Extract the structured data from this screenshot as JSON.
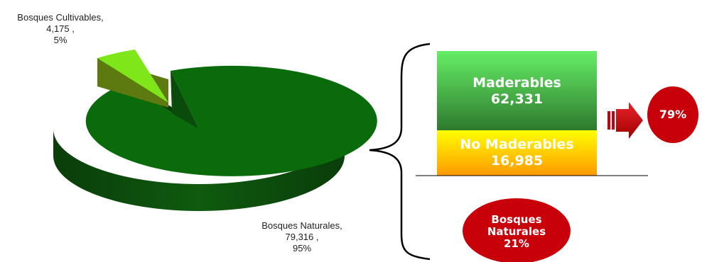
{
  "chart_data": {
    "type": "pie",
    "slices": [
      {
        "name": "Bosques Cultivables,",
        "value": 4175,
        "value_label": "4,175 ,",
        "percent_label": "5%",
        "color": "#7fe619"
      },
      {
        "name": "Bosques Naturales,",
        "value": 79316,
        "value_label": "79,316 ,",
        "percent_label": "95%",
        "color": "#0a6b0a"
      }
    ]
  },
  "breakdown": {
    "maderables": {
      "title": "Maderables",
      "value": "62,331",
      "color_top": "#66ee66",
      "color_bottom": "#2d7a2d"
    },
    "no_maderables": {
      "title": "No Maderables",
      "value": "16,985",
      "color_top": "#ffff00",
      "color_bottom": "#ff9900"
    }
  },
  "badges": {
    "right_percent": "79%",
    "bottom_line1": "Bosques",
    "bottom_line2": "Naturales",
    "bottom_line3": "21%",
    "badge_color": "#c8000a"
  }
}
